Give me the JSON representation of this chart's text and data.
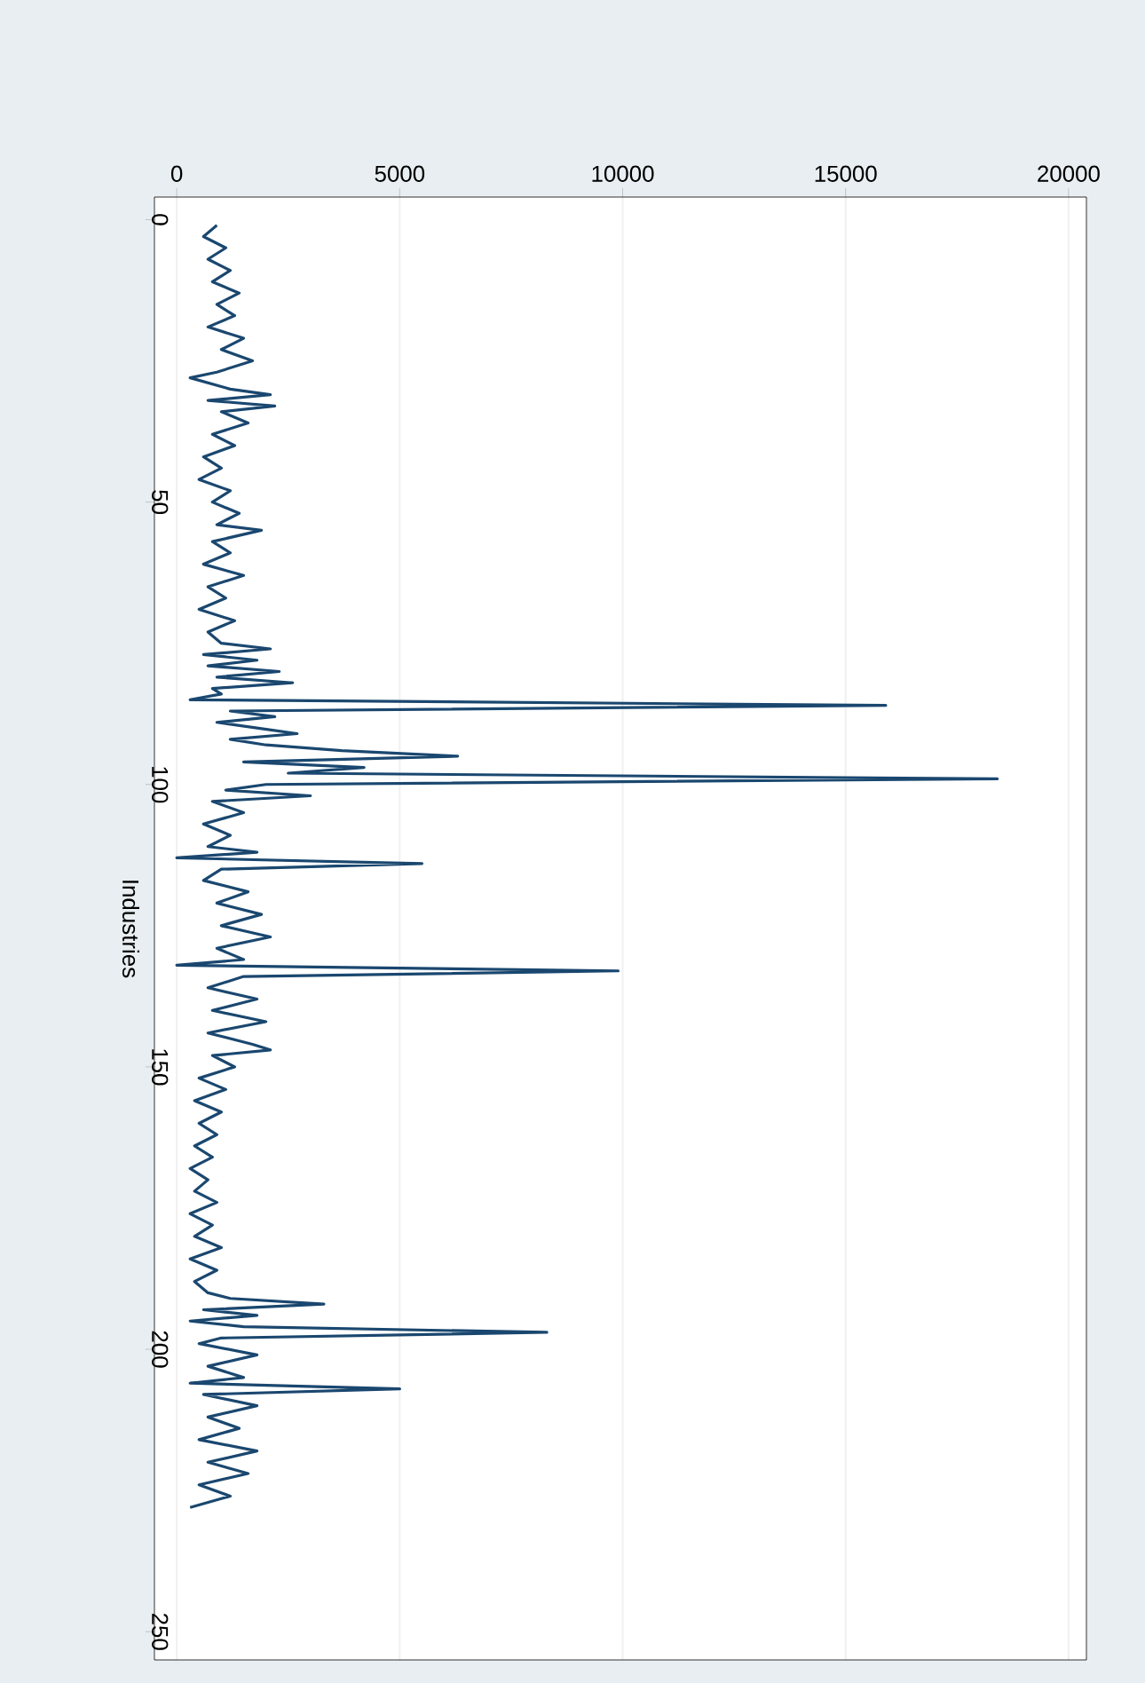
{
  "chart_data": {
    "type": "line",
    "ylabel": "Industries",
    "values": [
      1,
      3,
      5,
      7,
      9,
      11,
      13,
      15,
      17,
      19,
      21,
      23,
      25,
      27,
      28,
      30,
      31,
      32,
      33,
      34,
      36,
      38,
      40,
      42,
      44,
      46,
      48,
      50,
      52,
      54,
      55,
      57,
      59,
      61,
      63,
      65,
      67,
      69,
      71,
      73,
      75,
      76,
      77,
      78,
      79,
      80,
      81,
      82,
      83,
      84,
      85,
      86,
      87,
      88,
      89,
      90,
      91,
      92,
      93,
      94,
      95,
      96,
      97,
      98,
      99,
      100,
      101,
      102,
      103,
      105,
      107,
      109,
      111,
      112,
      113,
      114,
      115,
      117,
      119,
      121,
      123,
      125,
      127,
      129,
      131,
      132,
      133,
      134,
      136,
      138,
      140,
      142,
      144,
      146,
      147,
      148,
      150,
      152,
      154,
      156,
      158,
      160,
      162,
      164,
      166,
      168,
      170,
      172,
      174,
      176,
      178,
      180,
      182,
      184,
      186,
      188,
      190,
      191,
      192,
      193,
      194,
      195,
      196,
      197,
      198,
      199,
      201,
      203,
      205,
      206,
      207,
      208,
      210,
      212,
      214,
      216,
      218,
      220,
      222,
      224,
      226,
      228
    ],
    "x": [
      900,
      600,
      1100,
      700,
      1200,
      800,
      1400,
      900,
      1300,
      700,
      1500,
      1000,
      1700,
      900,
      300,
      1200,
      2100,
      700,
      2200,
      1000,
      1600,
      800,
      1300,
      600,
      1000,
      500,
      1200,
      800,
      1400,
      900,
      1900,
      800,
      1200,
      600,
      1500,
      700,
      1100,
      500,
      1300,
      700,
      1000,
      2100,
      600,
      1800,
      700,
      2300,
      900,
      2600,
      800,
      1000,
      300,
      15900,
      1200,
      2200,
      900,
      1800,
      2700,
      1200,
      2000,
      3700,
      6300,
      1500,
      4200,
      2500,
      18400,
      2000,
      1100,
      3000,
      800,
      1500,
      600,
      1200,
      700,
      1800,
      0,
      5500,
      1000,
      600,
      1600,
      900,
      1900,
      1000,
      2100,
      900,
      1500,
      0,
      9900,
      1500,
      700,
      1800,
      800,
      2000,
      700,
      1700,
      2100,
      800,
      1300,
      500,
      1100,
      400,
      1000,
      500,
      900,
      400,
      800,
      300,
      700,
      400,
      900,
      300,
      800,
      400,
      1000,
      300,
      900,
      400,
      700,
      1200,
      3300,
      600,
      1800,
      300,
      1500,
      8300,
      1000,
      500,
      1800,
      700,
      1500,
      300,
      5000,
      600,
      1800,
      700,
      1400,
      500,
      1800,
      700,
      1600,
      500,
      1200,
      300
    ],
    "color": "#1a476f",
    "ylim": [
      255,
      -4
    ],
    "yticks": [
      0,
      50,
      100,
      150,
      200,
      250
    ],
    "xlim": [
      -500,
      20400
    ],
    "xticks": [
      0,
      5000,
      10000,
      15000,
      20000
    ],
    "grid": "x"
  }
}
